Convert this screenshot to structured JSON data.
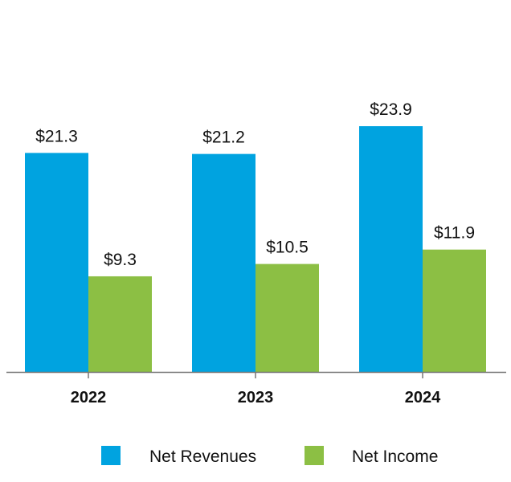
{
  "chart_data": {
    "type": "bar",
    "categories": [
      "2022",
      "2023",
      "2024"
    ],
    "series": [
      {
        "name": "Net Revenues",
        "values": [
          21.3,
          21.2,
          23.9
        ],
        "labels": [
          "$21.3",
          "$21.2",
          "$23.9"
        ],
        "color": "#00a3e0"
      },
      {
        "name": "Net Income",
        "values": [
          9.3,
          10.5,
          11.9
        ],
        "labels": [
          "$9.3",
          "$10.5",
          "$11.9"
        ],
        "color": "#8cbf44"
      }
    ],
    "ylim": [
      0,
      30
    ],
    "grid": false,
    "legend_position": "bottom",
    "axis_color": "#777777"
  }
}
